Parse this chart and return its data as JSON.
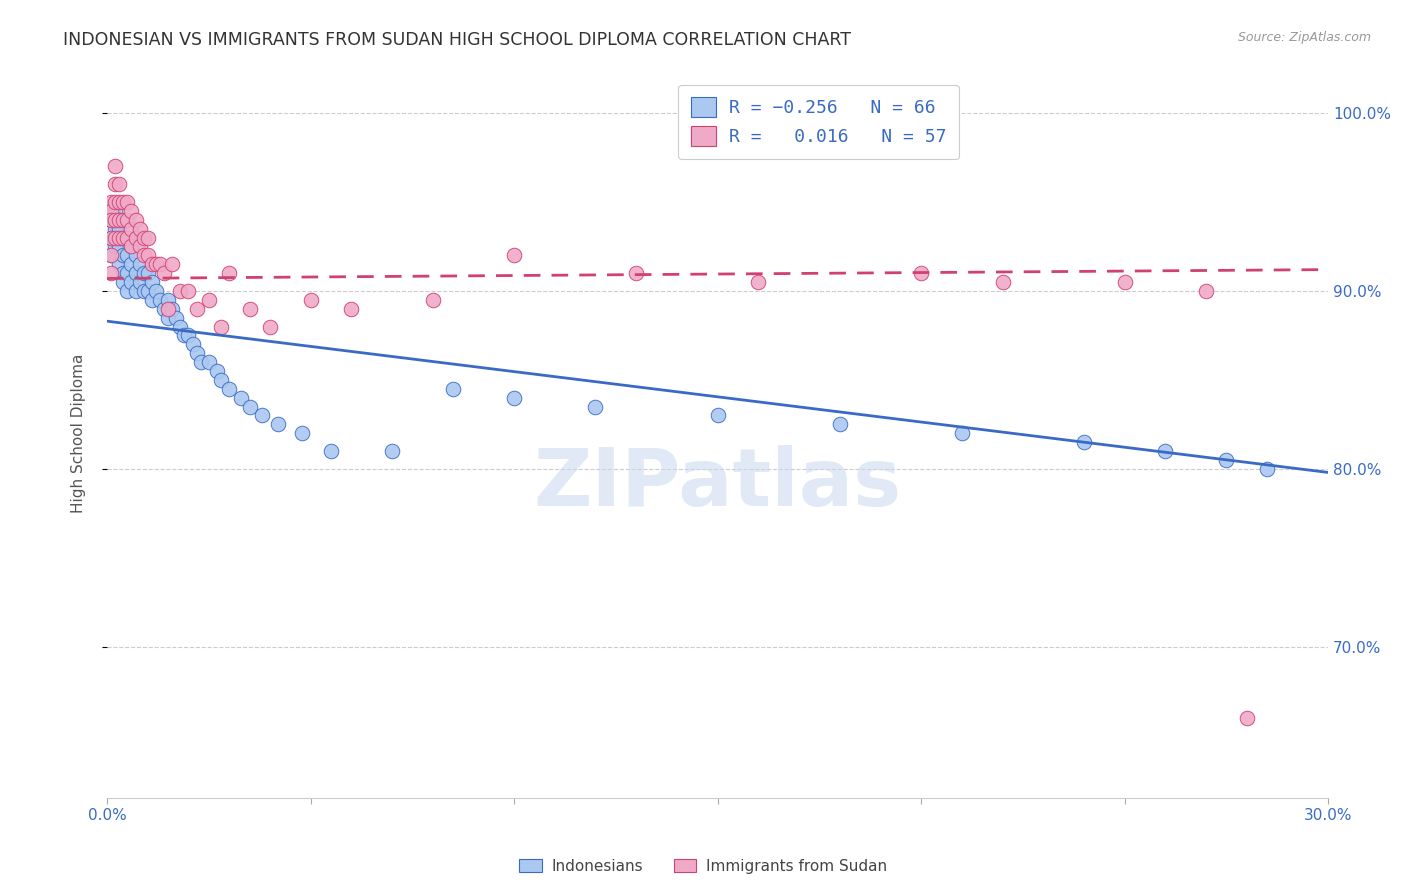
{
  "title": "INDONESIAN VS IMMIGRANTS FROM SUDAN HIGH SCHOOL DIPLOMA CORRELATION CHART",
  "source": "Source: ZipAtlas.com",
  "ylabel": "High School Diploma",
  "ytick_labels": [
    "100.0%",
    "90.0%",
    "80.0%",
    "70.0%"
  ],
  "ytick_values": [
    1.0,
    0.9,
    0.8,
    0.7
  ],
  "xlim": [
    0.0,
    0.3
  ],
  "ylim": [
    0.615,
    1.025
  ],
  "blue_color": "#aac8f0",
  "pink_color": "#f0aac8",
  "blue_line_color": "#3a6bc4",
  "pink_line_color": "#d04070",
  "label1": "Indonesians",
  "label2": "Immigrants from Sudan",
  "watermark": "ZIPatlas",
  "indonesian_x": [
    0.001,
    0.001,
    0.001,
    0.002,
    0.002,
    0.002,
    0.003,
    0.003,
    0.003,
    0.003,
    0.004,
    0.004,
    0.004,
    0.004,
    0.005,
    0.005,
    0.005,
    0.005,
    0.006,
    0.006,
    0.006,
    0.007,
    0.007,
    0.007,
    0.008,
    0.008,
    0.009,
    0.009,
    0.01,
    0.01,
    0.011,
    0.011,
    0.012,
    0.013,
    0.014,
    0.015,
    0.015,
    0.016,
    0.017,
    0.018,
    0.019,
    0.02,
    0.021,
    0.022,
    0.023,
    0.025,
    0.027,
    0.028,
    0.03,
    0.033,
    0.035,
    0.038,
    0.042,
    0.048,
    0.055,
    0.07,
    0.085,
    0.1,
    0.12,
    0.15,
    0.18,
    0.21,
    0.24,
    0.26,
    0.275,
    0.285
  ],
  "indonesian_y": [
    0.94,
    0.93,
    0.92,
    0.945,
    0.935,
    0.925,
    0.94,
    0.935,
    0.925,
    0.915,
    0.93,
    0.92,
    0.91,
    0.905,
    0.93,
    0.92,
    0.91,
    0.9,
    0.925,
    0.915,
    0.905,
    0.92,
    0.91,
    0.9,
    0.915,
    0.905,
    0.91,
    0.9,
    0.91,
    0.9,
    0.905,
    0.895,
    0.9,
    0.895,
    0.89,
    0.895,
    0.885,
    0.89,
    0.885,
    0.88,
    0.875,
    0.875,
    0.87,
    0.865,
    0.86,
    0.86,
    0.855,
    0.85,
    0.845,
    0.84,
    0.835,
    0.83,
    0.825,
    0.82,
    0.81,
    0.81,
    0.845,
    0.84,
    0.835,
    0.83,
    0.825,
    0.82,
    0.815,
    0.81,
    0.805,
    0.8
  ],
  "sudan_x": [
    0.001,
    0.001,
    0.001,
    0.001,
    0.001,
    0.001,
    0.002,
    0.002,
    0.002,
    0.002,
    0.002,
    0.003,
    0.003,
    0.003,
    0.003,
    0.004,
    0.004,
    0.004,
    0.005,
    0.005,
    0.005,
    0.006,
    0.006,
    0.006,
    0.007,
    0.007,
    0.008,
    0.008,
    0.009,
    0.009,
    0.01,
    0.01,
    0.011,
    0.012,
    0.013,
    0.014,
    0.015,
    0.016,
    0.018,
    0.02,
    0.022,
    0.025,
    0.028,
    0.03,
    0.035,
    0.04,
    0.05,
    0.06,
    0.08,
    0.1,
    0.13,
    0.16,
    0.2,
    0.22,
    0.25,
    0.27,
    0.28
  ],
  "sudan_y": [
    0.95,
    0.945,
    0.94,
    0.93,
    0.92,
    0.91,
    0.97,
    0.96,
    0.95,
    0.94,
    0.93,
    0.96,
    0.95,
    0.94,
    0.93,
    0.95,
    0.94,
    0.93,
    0.95,
    0.94,
    0.93,
    0.945,
    0.935,
    0.925,
    0.94,
    0.93,
    0.935,
    0.925,
    0.93,
    0.92,
    0.93,
    0.92,
    0.915,
    0.915,
    0.915,
    0.91,
    0.89,
    0.915,
    0.9,
    0.9,
    0.89,
    0.895,
    0.88,
    0.91,
    0.89,
    0.88,
    0.895,
    0.89,
    0.895,
    0.92,
    0.91,
    0.905,
    0.91,
    0.905,
    0.905,
    0.9,
    0.66
  ],
  "blue_trend_x": [
    0.0,
    0.3
  ],
  "blue_trend_y": [
    0.883,
    0.798
  ],
  "pink_trend_x": [
    0.0,
    0.3
  ],
  "pink_trend_y": [
    0.907,
    0.912
  ]
}
